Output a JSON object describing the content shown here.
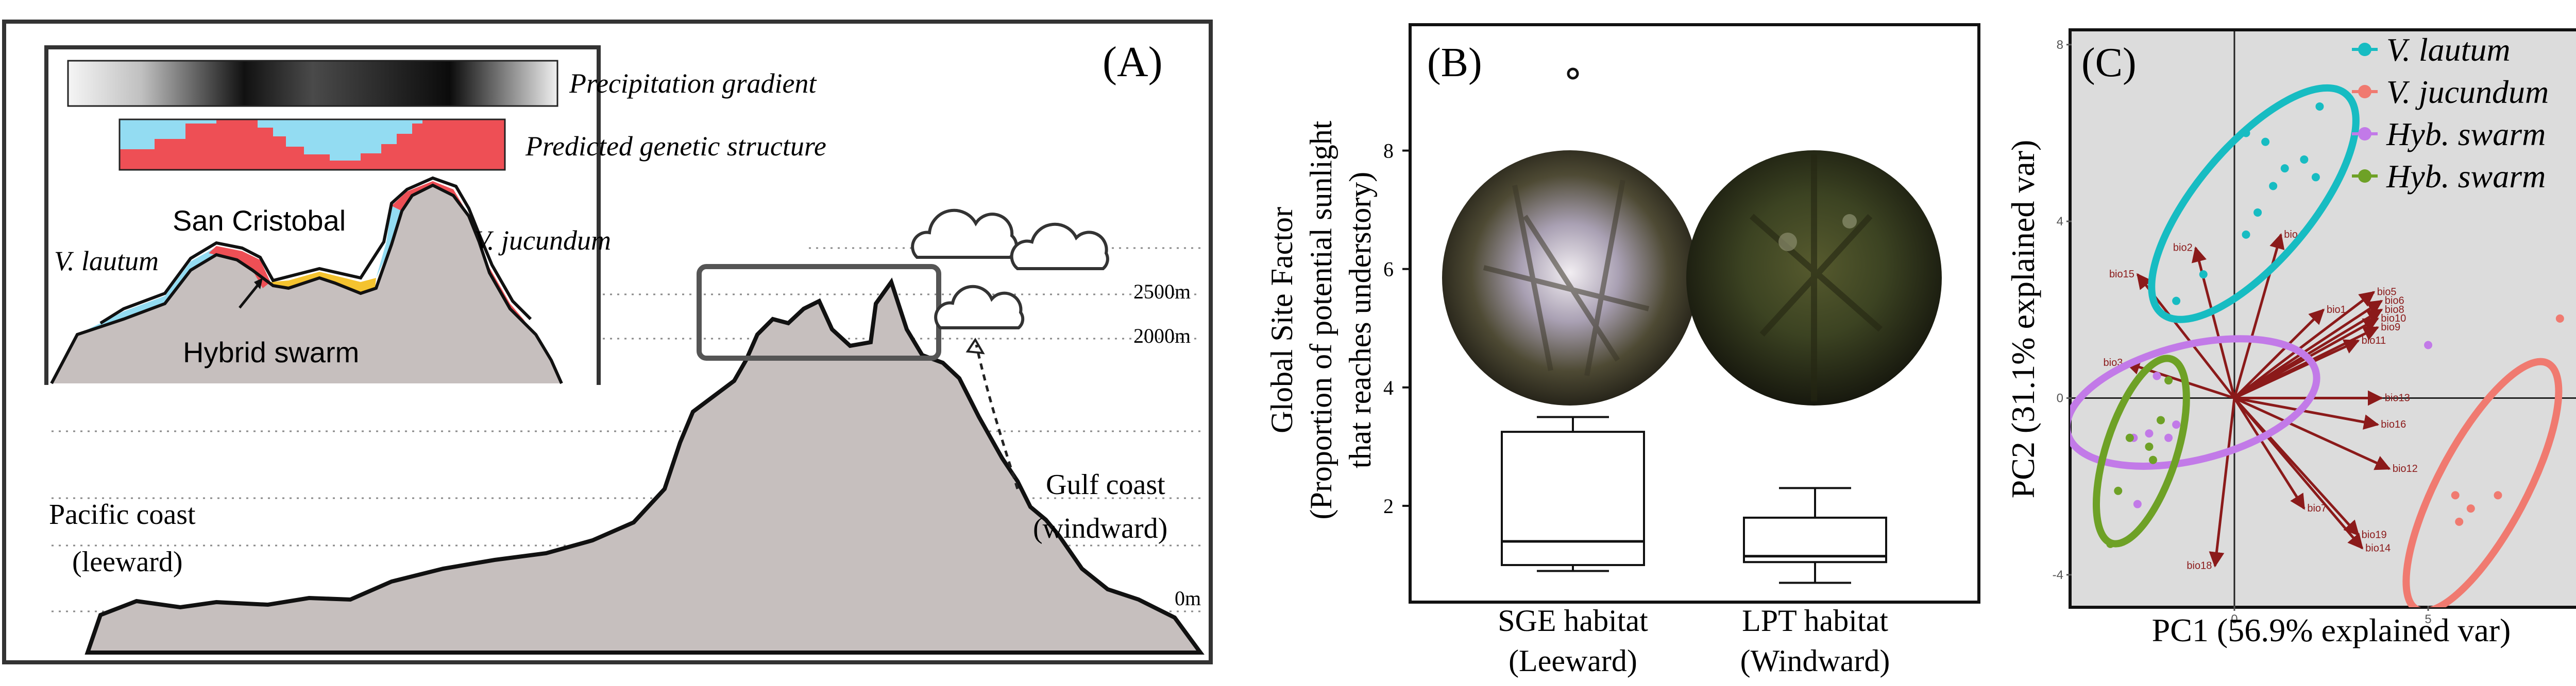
{
  "panel_a": {
    "label": "(A)",
    "inset": {
      "precipitation_label": "Precipitation gradient",
      "genetic_label": "Predicted genetic structure",
      "mountain_label": "San Cristobal",
      "left_species": "V. lautum",
      "right_species": "V. jucundum",
      "hybrid_label": "Hybrid swarm"
    },
    "elevations": [
      "2500m",
      "2000m",
      "0m"
    ],
    "left_coast": [
      "Pacific coast",
      "(leeward)"
    ],
    "right_coast": [
      "Gulf coast",
      "(windward)"
    ]
  },
  "chart_data": [
    {
      "type": "box",
      "panel": "(B)",
      "ylabel": [
        "Global Site Factor",
        "(Proportion of potential sunlight",
        "that reaches understory)"
      ],
      "ylim": [
        0.4,
        10.1
      ],
      "yticks": [
        2,
        4,
        6,
        8
      ],
      "categories": [
        [
          "SGE habitat",
          "(Leeward)"
        ],
        [
          "LPT habitat",
          "(Windward)"
        ]
      ],
      "boxes": [
        {
          "min": 0.9,
          "q1": 1.0,
          "median": 1.4,
          "q3": 3.25,
          "max": 3.5,
          "outliers": [
            9.3
          ]
        },
        {
          "min": 0.7,
          "q1": 1.05,
          "median": 1.15,
          "q3": 1.8,
          "max": 2.3,
          "outliers": []
        }
      ]
    },
    {
      "type": "scatter",
      "panel": "(C)",
      "xlabel": "PC1 (56.9% explained var)",
      "ylabel": "PC2 (31.1% explained var)",
      "xlim": [
        -4.2,
        9.2
      ],
      "ylim": [
        -4.7,
        8.3
      ],
      "xticks": [
        0,
        5
      ],
      "yticks": [
        -4,
        0,
        4,
        8
      ],
      "legend_position": "top-right",
      "series": [
        {
          "name": "V. lautum",
          "color": "#17bcc2",
          "points": [
            [
              0.3,
              6.0
            ],
            [
              0.8,
              5.8
            ],
            [
              1.0,
              4.8
            ],
            [
              1.3,
              5.2
            ],
            [
              1.8,
              5.4
            ],
            [
              2.2,
              6.6
            ],
            [
              2.1,
              5.0
            ],
            [
              0.6,
              4.2
            ],
            [
              0.3,
              3.7
            ],
            [
              -1.5,
              2.2
            ],
            [
              -0.8,
              2.8
            ]
          ],
          "ellipse": {
            "cx": 0.5,
            "cy": 4.4,
            "rx": 3.7,
            "ry": 1.3,
            "angle_deg": 50
          }
        },
        {
          "name": "V. jucundum",
          "color": "#f07a70",
          "points": [
            [
              8.4,
              1.8
            ],
            [
              6.8,
              -2.2
            ],
            [
              6.1,
              -2.5
            ],
            [
              5.7,
              -2.2
            ],
            [
              5.8,
              -2.8
            ]
          ],
          "ellipse": {
            "cx": 6.4,
            "cy": -2.0,
            "rx": 3.6,
            "ry": 1.0,
            "angle_deg": 62
          }
        },
        {
          "name": "Hyb. swarm",
          "color": "#c27ae8",
          "points": [
            [
              5.0,
              1.2
            ],
            [
              -2.0,
              0.5
            ],
            [
              -2.2,
              -0.8
            ],
            [
              -1.5,
              -0.6
            ],
            [
              -2.6,
              -0.9
            ],
            [
              -1.7,
              -0.9
            ],
            [
              -2.5,
              -2.4
            ]
          ],
          "ellipse": {
            "cx": -1.1,
            "cy": -0.1,
            "rx": 3.3,
            "ry": 1.3,
            "angle_deg": 14
          }
        },
        {
          "name": "Hyb. swarm",
          "color": "#6ea126",
          "points": [
            [
              -2.7,
              -0.9
            ],
            [
              -2.2,
              -1.1
            ],
            [
              -1.9,
              -0.5
            ],
            [
              -3.0,
              -2.1
            ],
            [
              -3.2,
              -3.3
            ],
            [
              -2.1,
              -1.4
            ],
            [
              -1.7,
              0.4
            ]
          ],
          "ellipse": {
            "cx": -2.4,
            "cy": -1.2,
            "rx": 2.5,
            "ry": 0.8,
            "angle_deg": 72
          }
        }
      ],
      "loadings": [
        {
          "name": "bio5",
          "x": 3.6,
          "y": 2.4
        },
        {
          "name": "bio6",
          "x": 3.8,
          "y": 2.2
        },
        {
          "name": "bio8",
          "x": 3.8,
          "y": 2.0
        },
        {
          "name": "bio10",
          "x": 3.7,
          "y": 1.8
        },
        {
          "name": "bio9",
          "x": 3.7,
          "y": 1.6
        },
        {
          "name": "bio11",
          "x": 3.2,
          "y": 1.3
        },
        {
          "name": "bio13",
          "x": 3.8,
          "y": 0.0
        },
        {
          "name": "bio16",
          "x": 3.7,
          "y": -0.6
        },
        {
          "name": "bio12",
          "x": 4.0,
          "y": -1.6
        },
        {
          "name": "bio19",
          "x": 3.2,
          "y": -3.1
        },
        {
          "name": "bio14",
          "x": 3.3,
          "y": -3.4
        },
        {
          "name": "bio2",
          "x": -1.0,
          "y": 3.4
        },
        {
          "name": "bio3",
          "x": -2.8,
          "y": 0.8
        },
        {
          "name": "bio15",
          "x": -2.5,
          "y": 2.8
        },
        {
          "name": "bio4",
          "x": 1.2,
          "y": 3.7
        },
        {
          "name": "bio18",
          "x": -0.5,
          "y": -3.8
        },
        {
          "name": "bio1",
          "x": 2.3,
          "y": 2.0
        },
        {
          "name": "bio7",
          "x": 1.8,
          "y": -2.5
        }
      ]
    }
  ]
}
